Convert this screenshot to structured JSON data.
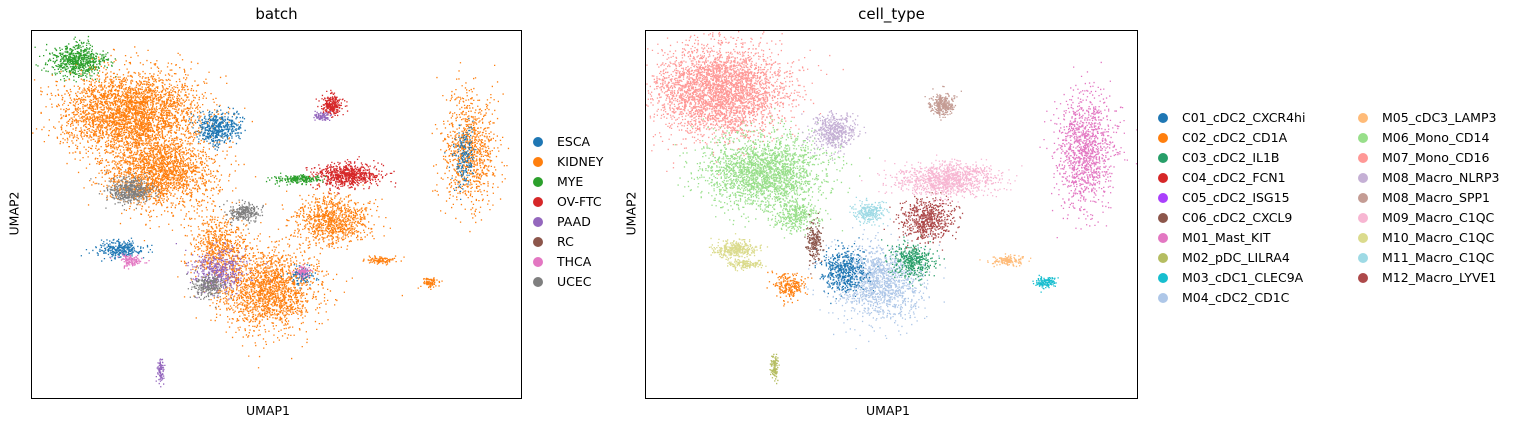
{
  "chart_data": [
    {
      "type": "scatter",
      "title": "batch",
      "xlabel": "UMAP1",
      "ylabel": "UMAP2",
      "grid": false,
      "legend_placement": "right",
      "legend_columns": 1,
      "series": [
        {
          "name": "ESCA",
          "color": "#1f77b4"
        },
        {
          "name": "KIDNEY",
          "color": "#ff7f0e"
        },
        {
          "name": "MYE",
          "color": "#2ca02c"
        },
        {
          "name": "OV-FTC",
          "color": "#d62728"
        },
        {
          "name": "PAAD",
          "color": "#9467bd"
        },
        {
          "name": "RC",
          "color": "#8c564b"
        },
        {
          "name": "THCA",
          "color": "#e377c2"
        },
        {
          "name": "UCEC",
          "color": "#7f7f7f"
        }
      ],
      "clusters": [
        {
          "series": "MYE",
          "x": 0.09,
          "y": 0.92,
          "rx": 0.05,
          "ry": 0.04,
          "n": 700
        },
        {
          "series": "KIDNEY",
          "x": 0.2,
          "y": 0.78,
          "rx": 0.13,
          "ry": 0.1,
          "n": 3200
        },
        {
          "series": "KIDNEY",
          "x": 0.26,
          "y": 0.62,
          "rx": 0.1,
          "ry": 0.09,
          "n": 2000
        },
        {
          "series": "ESCA",
          "x": 0.38,
          "y": 0.74,
          "rx": 0.04,
          "ry": 0.04,
          "n": 500
        },
        {
          "series": "UCEC",
          "x": 0.2,
          "y": 0.57,
          "rx": 0.04,
          "ry": 0.03,
          "n": 500
        },
        {
          "series": "KIDNEY",
          "x": 0.38,
          "y": 0.42,
          "rx": 0.05,
          "ry": 0.08,
          "n": 600
        },
        {
          "series": "KIDNEY",
          "x": 0.48,
          "y": 0.3,
          "rx": 0.09,
          "ry": 0.1,
          "n": 1800
        },
        {
          "series": "KIDNEY",
          "x": 0.61,
          "y": 0.49,
          "rx": 0.07,
          "ry": 0.06,
          "n": 900
        },
        {
          "series": "OV-FTC",
          "x": 0.64,
          "y": 0.61,
          "rx": 0.06,
          "ry": 0.03,
          "n": 700
        },
        {
          "series": "MYE",
          "x": 0.54,
          "y": 0.6,
          "rx": 0.04,
          "ry": 0.01,
          "n": 200
        },
        {
          "series": "UCEC",
          "x": 0.43,
          "y": 0.51,
          "rx": 0.03,
          "ry": 0.025,
          "n": 250
        },
        {
          "series": "PAAD",
          "x": 0.38,
          "y": 0.35,
          "rx": 0.05,
          "ry": 0.05,
          "n": 450
        },
        {
          "series": "UCEC",
          "x": 0.36,
          "y": 0.31,
          "rx": 0.03,
          "ry": 0.03,
          "n": 250
        },
        {
          "series": "ESCA",
          "x": 0.18,
          "y": 0.41,
          "rx": 0.04,
          "ry": 0.02,
          "n": 300
        },
        {
          "series": "THCA",
          "x": 0.2,
          "y": 0.38,
          "rx": 0.02,
          "ry": 0.015,
          "n": 120
        },
        {
          "series": "ESCA",
          "x": 0.55,
          "y": 0.34,
          "rx": 0.02,
          "ry": 0.02,
          "n": 120
        },
        {
          "series": "THCA",
          "x": 0.55,
          "y": 0.35,
          "rx": 0.015,
          "ry": 0.015,
          "n": 80
        },
        {
          "series": "OV-FTC",
          "x": 0.61,
          "y": 0.8,
          "rx": 0.02,
          "ry": 0.025,
          "n": 250
        },
        {
          "series": "PAAD",
          "x": 0.59,
          "y": 0.77,
          "rx": 0.015,
          "ry": 0.01,
          "n": 80
        },
        {
          "series": "KIDNEY",
          "x": 0.89,
          "y": 0.68,
          "rx": 0.05,
          "ry": 0.14,
          "n": 900
        },
        {
          "series": "ESCA",
          "x": 0.88,
          "y": 0.66,
          "rx": 0.02,
          "ry": 0.08,
          "n": 200
        },
        {
          "series": "KIDNEY",
          "x": 0.71,
          "y": 0.38,
          "rx": 0.03,
          "ry": 0.01,
          "n": 100
        },
        {
          "series": "KIDNEY",
          "x": 0.81,
          "y": 0.32,
          "rx": 0.015,
          "ry": 0.012,
          "n": 80
        },
        {
          "series": "PAAD",
          "x": 0.26,
          "y": 0.08,
          "rx": 0.006,
          "ry": 0.03,
          "n": 90
        }
      ]
    },
    {
      "type": "scatter",
      "title": "cell_type",
      "xlabel": "UMAP1",
      "ylabel": "UMAP2",
      "grid": false,
      "legend_placement": "right",
      "legend_columns": 2,
      "series": [
        {
          "name": "C01_cDC2_CXCR4hi",
          "color": "#1f77b4"
        },
        {
          "name": "C02_cDC2_CD1A",
          "color": "#ff7f0e"
        },
        {
          "name": "C03_cDC2_IL1B",
          "color": "#279e68"
        },
        {
          "name": "C04_cDC2_FCN1",
          "color": "#d62728"
        },
        {
          "name": "C05_cDC2_ISG15",
          "color": "#aa40fc"
        },
        {
          "name": "C06_cDC2_CXCL9",
          "color": "#8c564b"
        },
        {
          "name": "M01_Mast_KIT",
          "color": "#e377c2"
        },
        {
          "name": "M02_pDC_LILRA4",
          "color": "#b5bd61"
        },
        {
          "name": "M03_cDC1_CLEC9A",
          "color": "#17becf"
        },
        {
          "name": "M04_cDC2_CD1C",
          "color": "#aec7e8"
        },
        {
          "name": "M05_cDC3_LAMP3",
          "color": "#ffbb78"
        },
        {
          "name": "M06_Mono_CD14",
          "color": "#98df8a"
        },
        {
          "name": "M07_Mono_CD16",
          "color": "#ff9896"
        },
        {
          "name": "M08_Macro_NLRP3",
          "color": "#c5b0d5"
        },
        {
          "name": "M08_Macro_SPP1",
          "color": "#c49c94"
        },
        {
          "name": "M09_Macro_C1QC",
          "color": "#f7b6d2"
        },
        {
          "name": "M10_Macro_C1QC",
          "color": "#dbdb8d"
        },
        {
          "name": "M11_Macro_C1QC",
          "color": "#9edae5"
        },
        {
          "name": "M12_Macro_LYVE1",
          "color": "#ad494a"
        }
      ],
      "clusters": [
        {
          "series": "M07_Mono_CD16",
          "x": 0.15,
          "y": 0.84,
          "rx": 0.12,
          "ry": 0.11,
          "n": 3500
        },
        {
          "series": "M06_Mono_CD14",
          "x": 0.24,
          "y": 0.62,
          "rx": 0.11,
          "ry": 0.09,
          "n": 2200
        },
        {
          "series": "M08_Macro_NLRP3",
          "x": 0.38,
          "y": 0.73,
          "rx": 0.04,
          "ry": 0.045,
          "n": 500
        },
        {
          "series": "M06_Mono_CD14",
          "x": 0.3,
          "y": 0.5,
          "rx": 0.04,
          "ry": 0.04,
          "n": 350
        },
        {
          "series": "M04_cDC2_CD1C",
          "x": 0.47,
          "y": 0.32,
          "rx": 0.08,
          "ry": 0.09,
          "n": 1400
        },
        {
          "series": "C01_cDC2_CXCR4hi",
          "x": 0.4,
          "y": 0.35,
          "rx": 0.04,
          "ry": 0.05,
          "n": 500
        },
        {
          "series": "C03_cDC2_IL1B",
          "x": 0.54,
          "y": 0.38,
          "rx": 0.04,
          "ry": 0.04,
          "n": 400
        },
        {
          "series": "M12_Macro_LYVE1",
          "x": 0.57,
          "y": 0.49,
          "rx": 0.05,
          "ry": 0.05,
          "n": 600
        },
        {
          "series": "M09_Macro_C1QC",
          "x": 0.61,
          "y": 0.6,
          "rx": 0.09,
          "ry": 0.04,
          "n": 1100
        },
        {
          "series": "M11_Macro_C1QC",
          "x": 0.45,
          "y": 0.51,
          "rx": 0.03,
          "ry": 0.025,
          "n": 250
        },
        {
          "series": "C06_cDC2_CXCL9",
          "x": 0.34,
          "y": 0.43,
          "rx": 0.015,
          "ry": 0.05,
          "n": 200
        },
        {
          "series": "M10_Macro_C1QC",
          "x": 0.18,
          "y": 0.41,
          "rx": 0.04,
          "ry": 0.02,
          "n": 350
        },
        {
          "series": "M10_Macro_C1QC",
          "x": 0.2,
          "y": 0.37,
          "rx": 0.03,
          "ry": 0.012,
          "n": 150
        },
        {
          "series": "C02_cDC2_CD1A",
          "x": 0.29,
          "y": 0.31,
          "rx": 0.03,
          "ry": 0.03,
          "n": 220
        },
        {
          "series": "M08_Macro_SPP1",
          "x": 0.6,
          "y": 0.8,
          "rx": 0.02,
          "ry": 0.03,
          "n": 300
        },
        {
          "series": "M01_Mast_KIT",
          "x": 0.89,
          "y": 0.68,
          "rx": 0.05,
          "ry": 0.14,
          "n": 1200
        },
        {
          "series": "M05_cDC3_LAMP3",
          "x": 0.73,
          "y": 0.38,
          "rx": 0.03,
          "ry": 0.012,
          "n": 150
        },
        {
          "series": "M03_cDC1_CLEC9A",
          "x": 0.81,
          "y": 0.32,
          "rx": 0.018,
          "ry": 0.013,
          "n": 140
        },
        {
          "series": "M02_pDC_LILRA4",
          "x": 0.26,
          "y": 0.09,
          "rx": 0.007,
          "ry": 0.03,
          "n": 110
        }
      ]
    }
  ]
}
